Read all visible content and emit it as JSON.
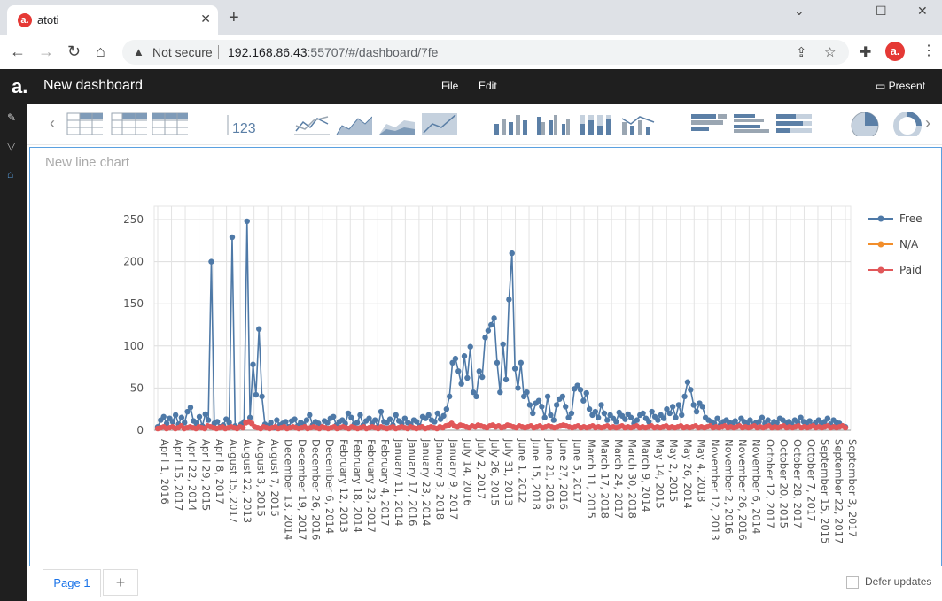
{
  "browser": {
    "tab_title": "atoti",
    "tab_favicon": "a.",
    "tab_close": "✕",
    "new_tab": "+",
    "win_minimize": "—",
    "win_maximize": "☐",
    "win_close": "✕",
    "security_label": "Not secure",
    "url_host": "192.168.86.43",
    "url_rest": ":55707/#/dashboard/7fe",
    "profile_letter": "a."
  },
  "app": {
    "logo": "a.",
    "dashboard_title": "New dashboard",
    "menu": [
      "File",
      "Edit"
    ],
    "present_label": "Present"
  },
  "toolbar": {
    "icons": [
      "table-icon",
      "pivot-table-icon",
      "tree-table-icon",
      "kpi-icon",
      "line-chart-icon",
      "area-chart-icon",
      "stacked-area-icon",
      "stacked-area-100-icon",
      "bar-chart-icon",
      "clustered-bar-icon",
      "stacked-bar-icon",
      "combo-chart-icon",
      "horizontal-bar-icon",
      "horizontal-clustered-icon",
      "horizontal-stacked-icon",
      "pie-chart-icon",
      "donut-chart-icon"
    ],
    "kpi_label": "123"
  },
  "panel": {
    "title": "New line chart"
  },
  "chart_data": {
    "type": "line",
    "title": "",
    "xlabel": "",
    "ylabel": "",
    "ylim": [
      0,
      260
    ],
    "yticks": [
      0,
      50,
      100,
      150,
      200,
      250
    ],
    "grid": true,
    "legend_position": "top-right",
    "x_tick_labels": [
      "April 1, 2016",
      "April 15, 2017",
      "April 22, 2014",
      "April 29, 2015",
      "April 8, 2017",
      "August 15, 2017",
      "August 22, 2013",
      "August 3, 2015",
      "August 7, 2015",
      "December 13, 2014",
      "December 19, 2017",
      "December 26, 2016",
      "December 6, 2014",
      "February 12, 2013",
      "February 18, 2014",
      "February 23, 2017",
      "February 4, 2017",
      "January 11, 2014",
      "January 17, 2016",
      "January 23, 2014",
      "January 3, 2018",
      "January 9, 2017",
      "July 14, 2016",
      "July 2, 2017",
      "July 26, 2015",
      "July 31, 2013",
      "June 1, 2012",
      "June 15, 2018",
      "June 21, 2016",
      "June 27, 2016",
      "June 5, 2017",
      "March 11, 2015",
      "March 17, 2018",
      "March 24, 2017",
      "March 30, 2018",
      "March 9, 2014",
      "May 14, 2015",
      "May 2, 2015",
      "May 26, 2014",
      "May 4, 2018",
      "November 12, 2013",
      "November 2, 2016",
      "November 26, 2016",
      "November 6, 2014",
      "October 12, 2017",
      "October 20, 2015",
      "October 28, 2017",
      "October 7, 2017",
      "September 15, 2015",
      "September 22, 2017",
      "September 3, 2017"
    ],
    "series": [
      {
        "name": "Free",
        "color": "#4e79a7",
        "values": [
          4,
          12,
          16,
          8,
          14,
          10,
          18,
          7,
          15,
          9,
          22,
          27,
          11,
          8,
          16,
          5,
          19,
          12,
          200,
          8,
          10,
          4,
          6,
          13,
          9,
          229,
          5,
          3,
          7,
          10,
          248,
          15,
          78,
          42,
          120,
          40,
          7,
          5,
          9,
          3,
          12,
          6,
          8,
          10,
          4,
          11,
          13,
          5,
          9,
          7,
          12,
          18,
          6,
          10,
          8,
          4,
          11,
          9,
          14,
          16,
          6,
          10,
          12,
          8,
          20,
          15,
          7,
          9,
          18,
          6,
          11,
          14,
          8,
          12,
          4,
          22,
          10,
          9,
          13,
          6,
          18,
          11,
          8,
          14,
          9,
          7,
          12,
          10,
          5,
          16,
          14,
          18,
          12,
          10,
          20,
          13,
          17,
          25,
          40,
          80,
          85,
          70,
          55,
          88,
          62,
          99,
          45,
          40,
          70,
          63,
          110,
          118,
          125,
          133,
          80,
          45,
          102,
          60,
          155,
          210,
          73,
          50,
          80,
          40,
          45,
          30,
          20,
          32,
          35,
          28,
          15,
          40,
          18,
          12,
          30,
          37,
          40,
          28,
          15,
          20,
          49,
          53,
          48,
          35,
          44,
          25,
          18,
          22,
          15,
          30,
          20,
          12,
          18,
          14,
          10,
          21,
          17,
          13,
          19,
          15,
          8,
          12,
          18,
          20,
          14,
          10,
          22,
          16,
          12,
          18,
          14,
          25,
          20,
          28,
          15,
          30,
          18,
          40,
          57,
          48,
          30,
          22,
          32,
          28,
          15,
          12,
          10,
          8,
          14,
          6,
          10,
          12,
          9,
          8,
          11,
          6,
          14,
          10,
          8,
          12,
          7,
          9,
          10,
          15,
          8,
          12,
          6,
          10,
          9,
          14,
          12,
          8,
          10,
          7,
          12,
          9,
          15,
          10,
          8,
          11,
          6,
          9,
          12,
          8,
          10,
          14,
          7,
          12,
          9,
          8,
          5,
          4
        ]
      },
      {
        "name": "N/A",
        "color": "#f28e2b",
        "values": []
      },
      {
        "name": "Paid",
        "color": "#e15759",
        "values": [
          2,
          3,
          4,
          2,
          3,
          4,
          2,
          3,
          5,
          2,
          3,
          4,
          3,
          2,
          4,
          3,
          2,
          5,
          4,
          3,
          2,
          3,
          4,
          2,
          3,
          4,
          3,
          2,
          4,
          3,
          9,
          10,
          8,
          4,
          3,
          2,
          4,
          3,
          2,
          3,
          4,
          2,
          3,
          4,
          2,
          3,
          4,
          3,
          2,
          3,
          4,
          2,
          3,
          4,
          3,
          2,
          4,
          3,
          2,
          3,
          4,
          2,
          3,
          4,
          3,
          2,
          4,
          3,
          2,
          3,
          4,
          2,
          3,
          4,
          3,
          2,
          4,
          3,
          2,
          3,
          4,
          2,
          3,
          4,
          3,
          2,
          4,
          3,
          2,
          3,
          4,
          2,
          3,
          4,
          3,
          2,
          4,
          3,
          5,
          6,
          8,
          5,
          4,
          6,
          5,
          4,
          3,
          5,
          4,
          6,
          5,
          4,
          3,
          5,
          6,
          4,
          5,
          3,
          4,
          6,
          5,
          4,
          3,
          5,
          4,
          3,
          4,
          5,
          3,
          4,
          5,
          3,
          4,
          5,
          4,
          3,
          4,
          5,
          6,
          5,
          4,
          3,
          4,
          5,
          3,
          4,
          3,
          4,
          5,
          3,
          4,
          3,
          4,
          5,
          3,
          4,
          3,
          4,
          5,
          3,
          4,
          3,
          4,
          5,
          3,
          4,
          3,
          4,
          5,
          3,
          4,
          3,
          4,
          5,
          3,
          4,
          3,
          4,
          5,
          3,
          4,
          3,
          4,
          5,
          3,
          4,
          3,
          4,
          5,
          3,
          4,
          3,
          4,
          5,
          3,
          4,
          3,
          4,
          5,
          3,
          4,
          3,
          4,
          5,
          3,
          4,
          3,
          4,
          5,
          3,
          4,
          3,
          4,
          5,
          3,
          4,
          3,
          4,
          5,
          3,
          4,
          3,
          4,
          5,
          3,
          4,
          3,
          4,
          5,
          3,
          4,
          3,
          4,
          5,
          3
        ]
      }
    ]
  },
  "footer": {
    "page_tab": "Page 1",
    "add_page": "+",
    "defer_label": "Defer updates"
  }
}
